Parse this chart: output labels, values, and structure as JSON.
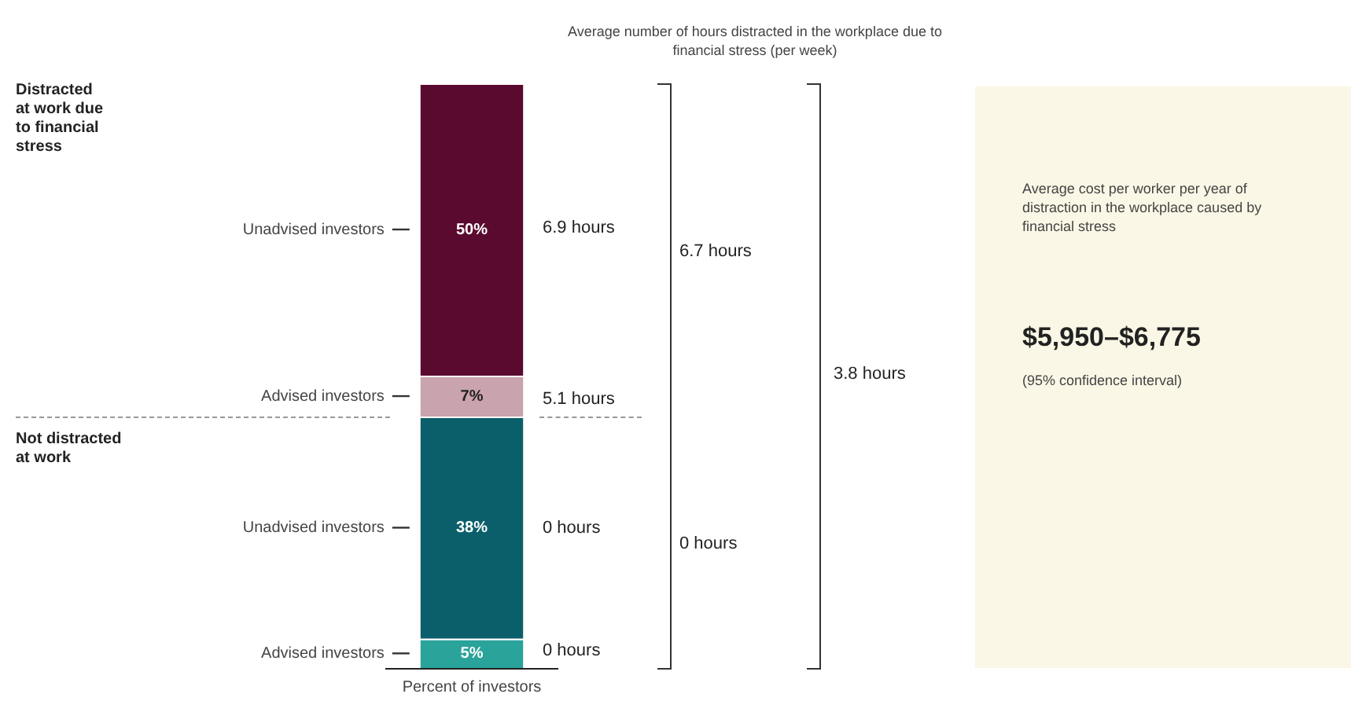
{
  "chart_data": {
    "type": "bar",
    "stacked": true,
    "xlabel": "Percent of investors",
    "categories": [
      null
    ],
    "legend": false,
    "tick_labels": false,
    "series": [
      {
        "name": "Advised investors",
        "color": "#2aa39a",
        "values": [
          5
        ],
        "value_labels": [
          "5%"
        ]
      },
      {
        "name": "Unadvised investors",
        "color": "#0b5f6b",
        "values": [
          38
        ],
        "value_labels": [
          "38%"
        ]
      },
      {
        "name": "Advised investors",
        "color": "#c9a3ad",
        "values": [
          7
        ],
        "value_labels": [
          "7%"
        ]
      },
      {
        "name": "Unadvised investors",
        "color": "#5a0a2e",
        "values": [
          50
        ],
        "value_labels": [
          "50%"
        ]
      }
    ],
    "annotations": [
      "Distracted at work due to financial stress",
      "Not distracted at work",
      "Average number of hours distracted in the workplace due to financial stress  (per week)",
      "6.9 hours",
      "5.1 hours",
      "0 hours",
      "0 hours",
      "6.7 hours",
      "0 hours",
      "3.8 hours",
      "Average cost per worker per year of distraction in the workplace caused by financial stress",
      "$5,950–$6,775",
      "(95% confidence interval)"
    ]
  }
}
